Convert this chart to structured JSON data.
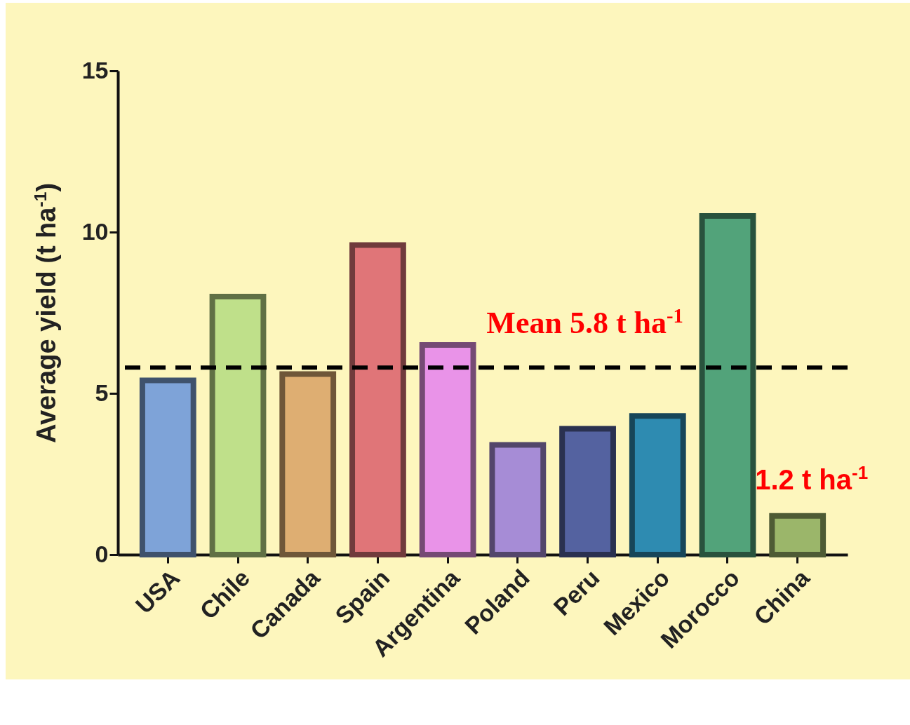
{
  "chart_data": {
    "type": "bar",
    "ylabel": "Average yield (t ha$^{-1}$)",
    "categories": [
      "USA",
      "Chile",
      "Canada",
      "Spain",
      "Argentina",
      "Poland",
      "Peru",
      "Mexico",
      "Morocco",
      "China"
    ],
    "values": [
      5.4,
      8.0,
      5.6,
      9.6,
      6.5,
      3.4,
      3.9,
      4.3,
      10.5,
      1.2
    ],
    "colors": [
      "#7ea3d8",
      "#bfe08a",
      "#deae72",
      "#e07578",
      "#e993e8",
      "#a68cd6",
      "#5462a0",
      "#2e8bb1",
      "#52a37a",
      "#9bb66a"
    ],
    "value_labels": [
      null,
      null,
      null,
      null,
      null,
      null,
      null,
      null,
      null,
      "1.2 t ha$^{-1}$"
    ],
    "ylim": [
      0,
      15
    ],
    "yticks": [
      0,
      5,
      10,
      15
    ],
    "grid": false,
    "ref_lines": [
      {
        "axis": "y",
        "value": 5.8,
        "label": "Mean 5.8 t ha$^{-1}$",
        "color": "#000000",
        "line_style": "dashed"
      }
    ]
  }
}
